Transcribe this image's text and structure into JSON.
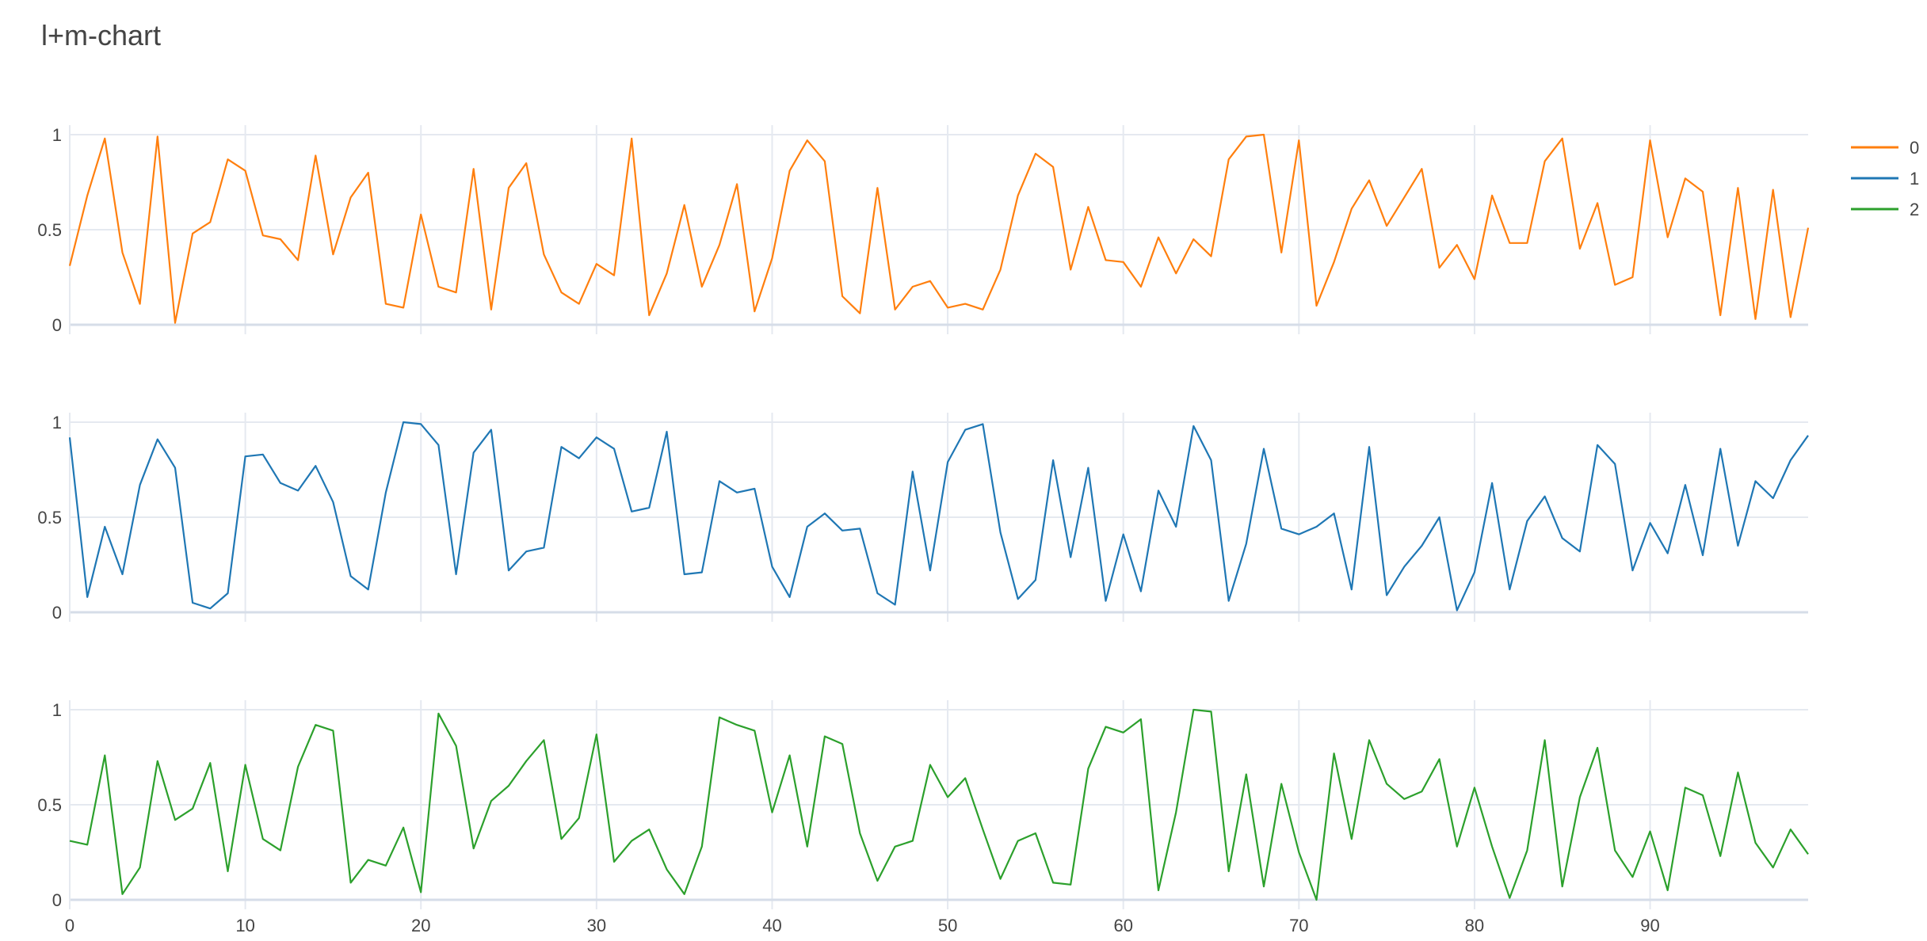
{
  "chart_data": {
    "type": "line",
    "title": "l+m-chart",
    "xlabel": "",
    "ylabel": "",
    "xlim": [
      0,
      99
    ],
    "ylim": [
      0,
      1
    ],
    "x_ticks": [
      "0",
      "10",
      "20",
      "30",
      "40",
      "50",
      "60",
      "70",
      "80",
      "90"
    ],
    "y_ticks": [
      "0",
      "0.5",
      "1"
    ],
    "grid": true,
    "legend_position": "top-right",
    "layout": "three vertically stacked panels sharing x-axis",
    "series": [
      {
        "name": "0",
        "color": "#ff7f0e",
        "values": [
          0.31,
          0.68,
          0.98,
          0.38,
          0.11,
          0.99,
          0.01,
          0.48,
          0.54,
          0.87,
          0.81,
          0.47,
          0.45,
          0.34,
          0.89,
          0.37,
          0.67,
          0.8,
          0.11,
          0.09,
          0.58,
          0.2,
          0.17,
          0.82,
          0.08,
          0.72,
          0.85,
          0.37,
          0.17,
          0.11,
          0.32,
          0.26,
          0.98,
          0.05,
          0.27,
          0.63,
          0.2,
          0.42,
          0.74,
          0.07,
          0.35,
          0.81,
          0.97,
          0.86,
          0.15,
          0.06,
          0.72,
          0.08,
          0.2,
          0.23,
          0.09,
          0.11,
          0.08,
          0.29,
          0.68,
          0.9,
          0.83,
          0.29,
          0.62,
          0.34,
          0.33,
          0.2,
          0.46,
          0.27,
          0.45,
          0.36,
          0.87,
          0.99,
          1.0,
          0.38,
          0.97,
          0.1,
          0.33,
          0.61,
          0.76,
          0.52,
          0.67,
          0.82,
          0.3,
          0.42,
          0.24,
          0.68,
          0.43,
          0.43,
          0.86,
          0.98,
          0.4,
          0.64,
          0.21,
          0.25,
          0.97,
          0.46,
          0.77,
          0.7,
          0.05,
          0.72,
          0.03,
          0.71,
          0.04,
          0.51
        ]
      },
      {
        "name": "1",
        "color": "#1f77b4",
        "values": [
          0.92,
          0.08,
          0.45,
          0.2,
          0.67,
          0.91,
          0.76,
          0.05,
          0.02,
          0.1,
          0.82,
          0.83,
          0.68,
          0.64,
          0.77,
          0.58,
          0.19,
          0.12,
          0.63,
          1.0,
          0.99,
          0.88,
          0.2,
          0.84,
          0.96,
          0.22,
          0.32,
          0.34,
          0.87,
          0.81,
          0.92,
          0.86,
          0.53,
          0.55,
          0.95,
          0.2,
          0.21,
          0.69,
          0.63,
          0.65,
          0.24,
          0.08,
          0.45,
          0.52,
          0.43,
          0.44,
          0.1,
          0.04,
          0.74,
          0.22,
          0.79,
          0.96,
          0.99,
          0.42,
          0.07,
          0.17,
          0.8,
          0.29,
          0.76,
          0.06,
          0.41,
          0.11,
          0.64,
          0.45,
          0.98,
          0.8,
          0.06,
          0.36,
          0.86,
          0.44,
          0.41,
          0.45,
          0.52,
          0.12,
          0.87,
          0.09,
          0.24,
          0.35,
          0.5,
          0.01,
          0.21,
          0.68,
          0.12,
          0.48,
          0.61,
          0.39,
          0.32,
          0.88,
          0.78,
          0.22,
          0.47,
          0.31,
          0.67,
          0.3,
          0.86,
          0.35,
          0.69,
          0.6,
          0.8,
          0.93
        ]
      },
      {
        "name": "2",
        "color": "#2ca02c",
        "values": [
          0.31,
          0.29,
          0.76,
          0.03,
          0.17,
          0.73,
          0.42,
          0.48,
          0.72,
          0.15,
          0.71,
          0.32,
          0.26,
          0.7,
          0.92,
          0.89,
          0.09,
          0.21,
          0.18,
          0.38,
          0.04,
          0.98,
          0.81,
          0.27,
          0.52,
          0.6,
          0.73,
          0.84,
          0.32,
          0.43,
          0.87,
          0.2,
          0.31,
          0.37,
          0.16,
          0.03,
          0.28,
          0.96,
          0.92,
          0.89,
          0.46,
          0.76,
          0.28,
          0.86,
          0.82,
          0.35,
          0.1,
          0.28,
          0.31,
          0.71,
          0.54,
          0.64,
          0.37,
          0.11,
          0.31,
          0.35,
          0.09,
          0.08,
          0.69,
          0.91,
          0.88,
          0.95,
          0.05,
          0.46,
          1.0,
          0.99,
          0.15,
          0.66,
          0.07,
          0.61,
          0.25,
          0.0,
          0.77,
          0.32,
          0.84,
          0.61,
          0.53,
          0.57,
          0.74,
          0.28,
          0.59,
          0.28,
          0.01,
          0.26,
          0.84,
          0.07,
          0.54,
          0.8,
          0.26,
          0.12,
          0.36,
          0.05,
          0.59,
          0.55,
          0.23,
          0.67,
          0.3,
          0.17,
          0.37,
          0.24
        ]
      }
    ]
  }
}
